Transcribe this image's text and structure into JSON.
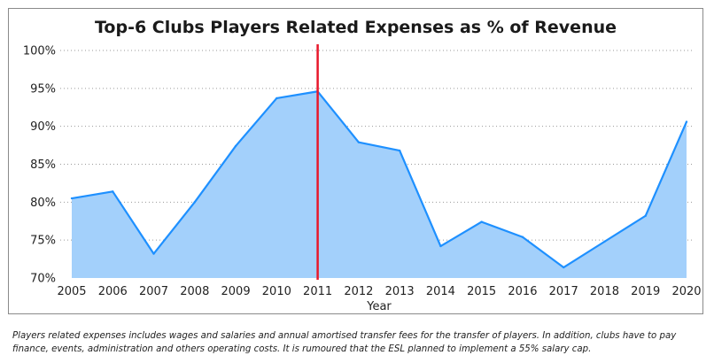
{
  "chart_data": {
    "type": "area",
    "title": "Top-6 Clubs Players Related Expenses as % of Revenue",
    "xlabel": "Year",
    "ylabel": "",
    "x": [
      "2005",
      "2006",
      "2007",
      "2008",
      "2009",
      "2010",
      "2011",
      "2012",
      "2013",
      "2014",
      "2015",
      "2016",
      "2017",
      "2018",
      "2019",
      "2020"
    ],
    "values": [
      80.5,
      81.4,
      73.2,
      80.0,
      87.4,
      93.7,
      94.6,
      87.9,
      86.8,
      74.2,
      77.4,
      75.4,
      71.4,
      74.8,
      78.2,
      90.6
    ],
    "ylim": [
      70,
      100
    ],
    "y_ticks": [
      70,
      75,
      80,
      85,
      90,
      95,
      100
    ],
    "y_tick_labels": [
      "70%",
      "75%",
      "80%",
      "85%",
      "90%",
      "95%",
      "100%"
    ],
    "marker_line": {
      "x": "2011",
      "color": "#e8182b"
    },
    "colors": {
      "fill": "#a3d0fb",
      "line": "#1e90ff"
    },
    "grid": {
      "horizontal": true,
      "style": "dotted"
    },
    "legend": "none"
  },
  "footnote": "Players related expenses includes wages and salaries and annual amortised transfer fees for the transfer of players. In addition, clubs have to pay finance, events, administration and others operating costs. It is rumoured that the ESL planned to implement a 55% salary cap."
}
